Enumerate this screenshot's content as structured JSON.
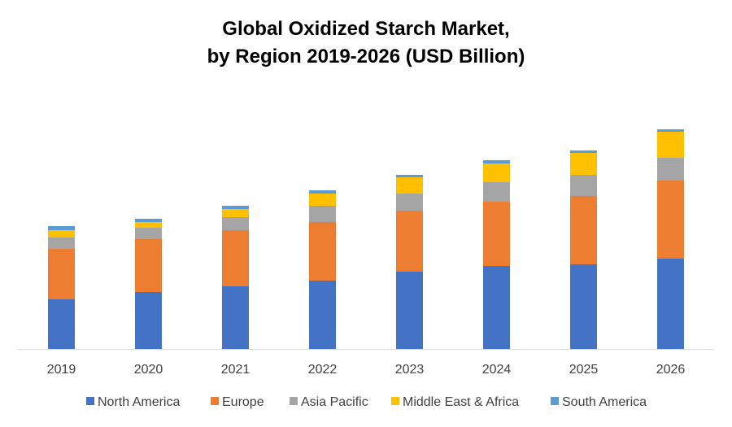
{
  "chart_data": {
    "type": "bar",
    "stacked": true,
    "title": "Global Oxidized Starch Market, by Region 2019-2026 (USD Billion)",
    "title_lines": [
      "Global Oxidized Starch Market,",
      "by Region 2019-2026 (USD Billion)"
    ],
    "categories": [
      "2019",
      "2020",
      "2021",
      "2022",
      "2023",
      "2024",
      "2025",
      "2026"
    ],
    "series": [
      {
        "name": "North America",
        "color": "#4472C4",
        "values": [
          0.61,
          0.7,
          0.77,
          0.84,
          0.95,
          1.02,
          1.04,
          1.11
        ]
      },
      {
        "name": "Europe",
        "color": "#ED7D31",
        "values": [
          0.62,
          0.65,
          0.69,
          0.72,
          0.75,
          0.79,
          0.84,
          0.96
        ]
      },
      {
        "name": "Asia Pacific",
        "color": "#A5A5A5",
        "values": [
          0.14,
          0.14,
          0.16,
          0.2,
          0.21,
          0.24,
          0.26,
          0.28
        ]
      },
      {
        "name": "Middle East & Africa",
        "color": "#FFC000",
        "values": [
          0.09,
          0.07,
          0.1,
          0.15,
          0.2,
          0.23,
          0.27,
          0.32
        ]
      },
      {
        "name": "South America",
        "color": "#5B9BD5",
        "values": [
          0.05,
          0.04,
          0.04,
          0.04,
          0.03,
          0.04,
          0.03,
          0.03
        ]
      }
    ],
    "y_axis_shown": false,
    "grid": false,
    "legend_position": "bottom",
    "xlabel": "",
    "ylabel": ""
  }
}
